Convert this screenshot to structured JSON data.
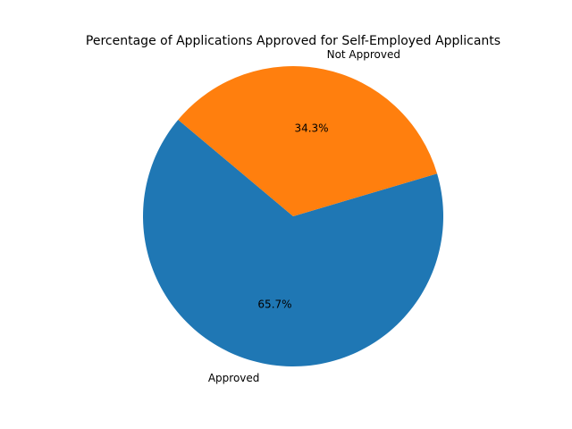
{
  "chart_data": {
    "type": "pie",
    "title": "Percentage of Applications Approved for Self-Employed Applicants",
    "labels": [
      "Approved",
      "Not Approved"
    ],
    "values": [
      65.7,
      34.3
    ],
    "value_labels": [
      "65.7%",
      "34.3%"
    ],
    "colors": [
      "#1f77b4",
      "#ff7f0e"
    ],
    "start_angle_deg": 140,
    "direction": "counterclockwise",
    "legend": "none"
  }
}
